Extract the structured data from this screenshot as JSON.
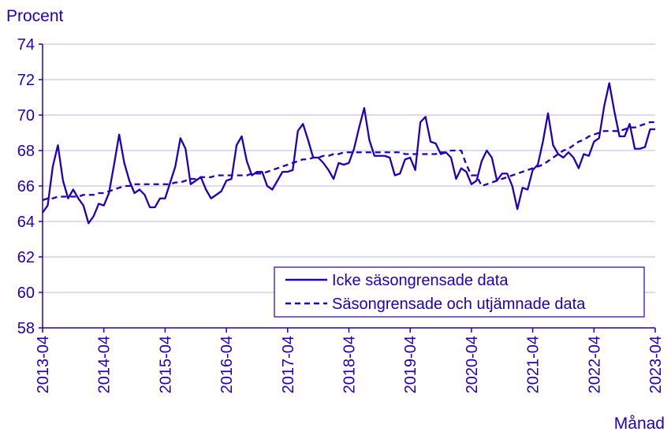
{
  "chart_data": {
    "type": "line",
    "ylabel": "Procent",
    "xlabel": "Månad",
    "ylim": [
      58,
      74
    ],
    "y_ticks": [
      58,
      60,
      62,
      64,
      66,
      68,
      70,
      72,
      74
    ],
    "x_ticks": [
      "2013-04",
      "2014-04",
      "2015-04",
      "2016-04",
      "2017-04",
      "2018-04",
      "2019-04",
      "2020-04",
      "2021-04",
      "2022-04",
      "2023-04"
    ],
    "grid": "horizontal",
    "legend_position": "bottom-right",
    "line_color": "#1e00be",
    "series": [
      {
        "name": "Icke säsongrensade data",
        "style": "solid",
        "x_start": "2013-04",
        "frequency": "monthly",
        "values": [
          64.5,
          64.9,
          67.1,
          68.3,
          66.3,
          65.3,
          65.8,
          65.3,
          64.9,
          63.9,
          64.3,
          65.0,
          64.9,
          65.6,
          67.2,
          68.9,
          67.3,
          66.3,
          65.6,
          65.8,
          65.5,
          64.8,
          64.8,
          65.3,
          65.3,
          66.2,
          67.1,
          68.7,
          68.1,
          66.1,
          66.3,
          66.5,
          65.8,
          65.3,
          65.5,
          65.7,
          66.3,
          66.4,
          68.3,
          68.8,
          67.4,
          66.6,
          66.8,
          66.8,
          66.0,
          65.8,
          66.3,
          66.8,
          66.8,
          66.9,
          69.1,
          69.5,
          68.6,
          67.6,
          67.6,
          67.3,
          66.9,
          66.4,
          67.3,
          67.2,
          67.3,
          68.1,
          69.3,
          70.4,
          68.6,
          67.7,
          67.7,
          67.7,
          67.6,
          66.6,
          66.7,
          67.5,
          67.6,
          66.9,
          69.6,
          69.9,
          68.5,
          68.4,
          67.8,
          67.9,
          67.6,
          66.4,
          67.0,
          66.8,
          66.1,
          66.3,
          67.4,
          68.0,
          67.6,
          66.3,
          66.7,
          66.7,
          66.0,
          64.7,
          65.9,
          65.8,
          66.9,
          67.2,
          68.5,
          70.1,
          68.3,
          67.8,
          67.6,
          67.9,
          67.6,
          67.0,
          67.8,
          67.7,
          68.5,
          68.7,
          70.5,
          71.8,
          70.2,
          68.8,
          68.8,
          69.5,
          68.1,
          68.1,
          68.2,
          69.2,
          69.2
        ]
      },
      {
        "name": "Säsongrensade och utjämnade data",
        "style": "dashed",
        "x_start": "2013-04",
        "frequency": "monthly",
        "values": [
          65.2,
          65.3,
          65.3,
          65.4,
          65.4,
          65.4,
          65.4,
          65.4,
          65.5,
          65.5,
          65.5,
          65.6,
          65.6,
          65.7,
          65.8,
          65.9,
          66.0,
          66.0,
          66.1,
          66.1,
          66.1,
          66.1,
          66.1,
          66.1,
          66.1,
          66.1,
          66.2,
          66.2,
          66.3,
          66.4,
          66.4,
          66.5,
          66.5,
          66.5,
          66.6,
          66.6,
          66.6,
          66.6,
          66.6,
          66.6,
          66.6,
          66.7,
          66.7,
          66.7,
          66.8,
          66.9,
          67.0,
          67.1,
          67.2,
          67.3,
          67.4,
          67.5,
          67.5,
          67.6,
          67.6,
          67.7,
          67.7,
          67.8,
          67.8,
          67.9,
          67.9,
          67.9,
          67.9,
          67.9,
          67.9,
          67.9,
          67.9,
          67.9,
          67.9,
          67.9,
          67.9,
          67.8,
          67.8,
          67.8,
          67.8,
          67.8,
          67.8,
          67.8,
          67.9,
          67.9,
          68.0,
          68.0,
          68.0,
          67.2,
          66.6,
          66.6,
          66.0,
          66.1,
          66.2,
          66.3,
          66.4,
          66.5,
          66.6,
          66.7,
          66.8,
          66.9,
          67.0,
          67.1,
          67.2,
          67.4,
          67.6,
          67.8,
          68.0,
          68.1,
          68.3,
          68.5,
          68.6,
          68.8,
          68.9,
          69.0,
          69.1,
          69.1,
          69.1,
          69.1,
          69.2,
          69.3,
          69.3,
          69.4,
          69.5,
          69.6,
          69.6
        ]
      }
    ]
  }
}
